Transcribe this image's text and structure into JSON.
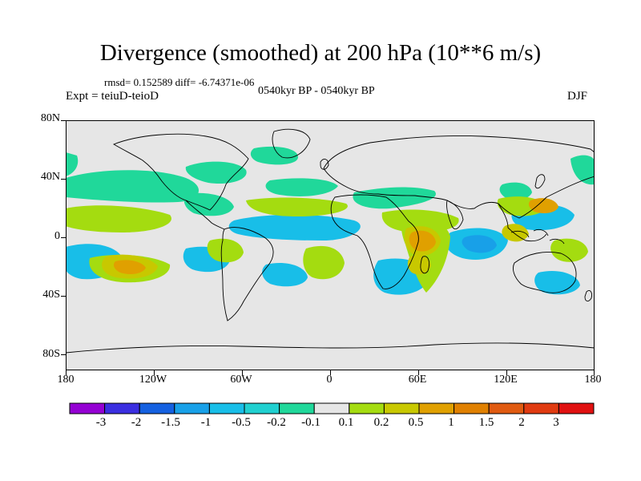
{
  "header": {
    "title": "Divergence (smoothed) at 200 hPa (10**6 m/s)",
    "stats": "rmsd= 0.152589 diff= -6.74371e-06",
    "experiment": "Expt = teiuD-teioD",
    "period": "0540kyr BP - 0540kyr BP",
    "season": "DJF"
  },
  "axes": {
    "lat_labels": [
      "80N",
      "40N",
      "0",
      "40S",
      "80S"
    ],
    "lon_labels": [
      "180",
      "120W",
      "60W",
      "0",
      "60E",
      "120E",
      "180"
    ]
  },
  "colorbar": {
    "labels": [
      "-3",
      "-2",
      "-1.5",
      "-1",
      "-0.5",
      "-0.2",
      "-0.1",
      "0.1",
      "0.2",
      "0.5",
      "1",
      "1.5",
      "2",
      "3"
    ],
    "colors": [
      "#9400d3",
      "#3a2ee0",
      "#1460e0",
      "#18a0e8",
      "#18bee8",
      "#20d0d0",
      "#20d89a",
      "#e6e6e6",
      "#a4dc10",
      "#c8c800",
      "#e0a000",
      "#e08000",
      "#e05a10",
      "#e03a10",
      "#e01010"
    ]
  },
  "map": {
    "background_color": "#e6e6e6"
  }
}
